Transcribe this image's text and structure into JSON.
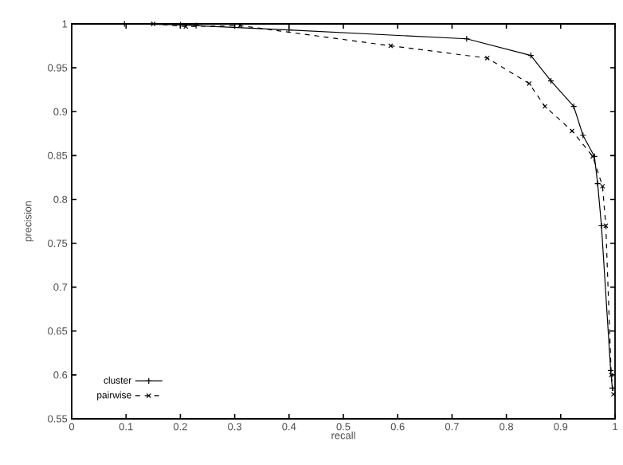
{
  "chart_data": {
    "type": "line",
    "xlabel": "recall",
    "ylabel": "precision",
    "xlim": [
      0,
      1
    ],
    "ylim": [
      0.55,
      1
    ],
    "xticks": [
      0,
      0.1,
      0.2,
      0.3,
      0.4,
      0.5,
      0.6,
      0.7,
      0.8,
      0.9,
      1
    ],
    "yticks": [
      0.55,
      0.6,
      0.65,
      0.7,
      0.75,
      0.8,
      0.85,
      0.9,
      0.95,
      1
    ],
    "grid": false,
    "legend": "bottom left",
    "series": [
      {
        "name": "cluster",
        "color": "#000000",
        "marker": "cross",
        "line_style": "solid",
        "x": [
          0.097,
          0.2,
          0.229,
          0.4,
          0.727,
          0.845,
          0.882,
          0.924,
          0.941,
          0.962,
          0.968,
          0.975,
          0.992,
          0.995
        ],
        "values": [
          1.0,
          0.999,
          0.998,
          0.993,
          0.983,
          0.964,
          0.935,
          0.906,
          0.873,
          0.849,
          0.818,
          0.77,
          0.605,
          0.585
        ]
      },
      {
        "name": "pairwise",
        "color": "#000000",
        "marker": "cross",
        "line_style": "dashed",
        "x": [
          0.15,
          0.21,
          0.31,
          0.587,
          0.765,
          0.842,
          0.871,
          0.921,
          0.959,
          0.977,
          0.983,
          0.993,
          0.997
        ],
        "values": [
          1.0,
          0.997,
          0.998,
          0.975,
          0.961,
          0.932,
          0.906,
          0.878,
          0.849,
          0.815,
          0.77,
          0.6,
          0.578
        ]
      }
    ]
  }
}
